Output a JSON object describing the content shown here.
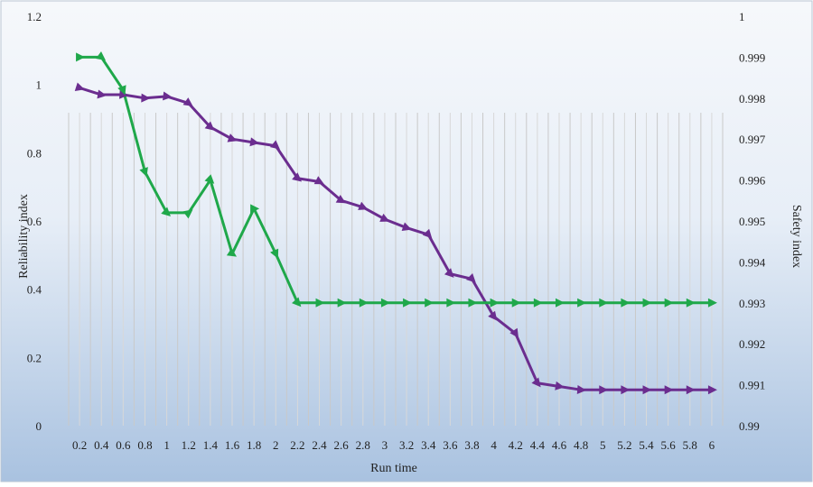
{
  "chart_data": {
    "type": "line",
    "xlabel": "Run time",
    "ylabel_left": "Reliability index",
    "ylabel_right": "Safety index",
    "categories": [
      "0.2",
      "0.4",
      "0.6",
      "0.8",
      "1",
      "1.2",
      "1.4",
      "1.6",
      "1.8",
      "2",
      "2.2",
      "2.4",
      "2.6",
      "2.8",
      "3",
      "3.2",
      "3.4",
      "3.6",
      "3.8",
      "4",
      "4.2",
      "4.4",
      "4.6",
      "4.8",
      "5",
      "5.2",
      "5.4",
      "5.6",
      "5.8",
      "6"
    ],
    "ylim_left": [
      0,
      1.2
    ],
    "ylim_right": [
      0.99,
      1
    ],
    "yticks_left": [
      "0",
      "0.2",
      "0.4",
      "0.6",
      "0.8",
      "1",
      "1.2"
    ],
    "yticks_right": [
      "0.99",
      "0.991",
      "0.992",
      "0.993",
      "0.994",
      "0.995",
      "0.996",
      "0.997",
      "0.998",
      "0.999",
      "1"
    ],
    "grid": "vertical",
    "colors": {
      "reliability": "#6b2d8f",
      "safety": "#1fa84a"
    },
    "series": [
      {
        "axis": "left",
        "color": "#6b2d8f",
        "values": [
          0.99,
          0.97,
          0.97,
          0.96,
          0.965,
          0.945,
          0.875,
          0.84,
          0.83,
          0.82,
          0.725,
          0.715,
          0.66,
          0.64,
          0.605,
          0.58,
          0.56,
          0.445,
          0.43,
          0.32,
          0.27,
          0.125,
          0.115,
          0.105,
          0.105,
          0.105,
          0.105,
          0.105,
          0.105,
          0.105
        ]
      },
      {
        "axis": "right",
        "color": "#1fa84a",
        "values": [
          0.999,
          0.999,
          0.9982,
          0.9962,
          0.9952,
          0.9952,
          0.996,
          0.9942,
          0.9953,
          0.9942,
          0.993,
          0.993,
          0.993,
          0.993,
          0.993,
          0.993,
          0.993,
          0.993,
          0.993,
          0.993,
          0.993,
          0.993,
          0.993,
          0.993,
          0.993,
          0.993,
          0.993,
          0.993,
          0.993,
          0.993
        ]
      }
    ]
  }
}
